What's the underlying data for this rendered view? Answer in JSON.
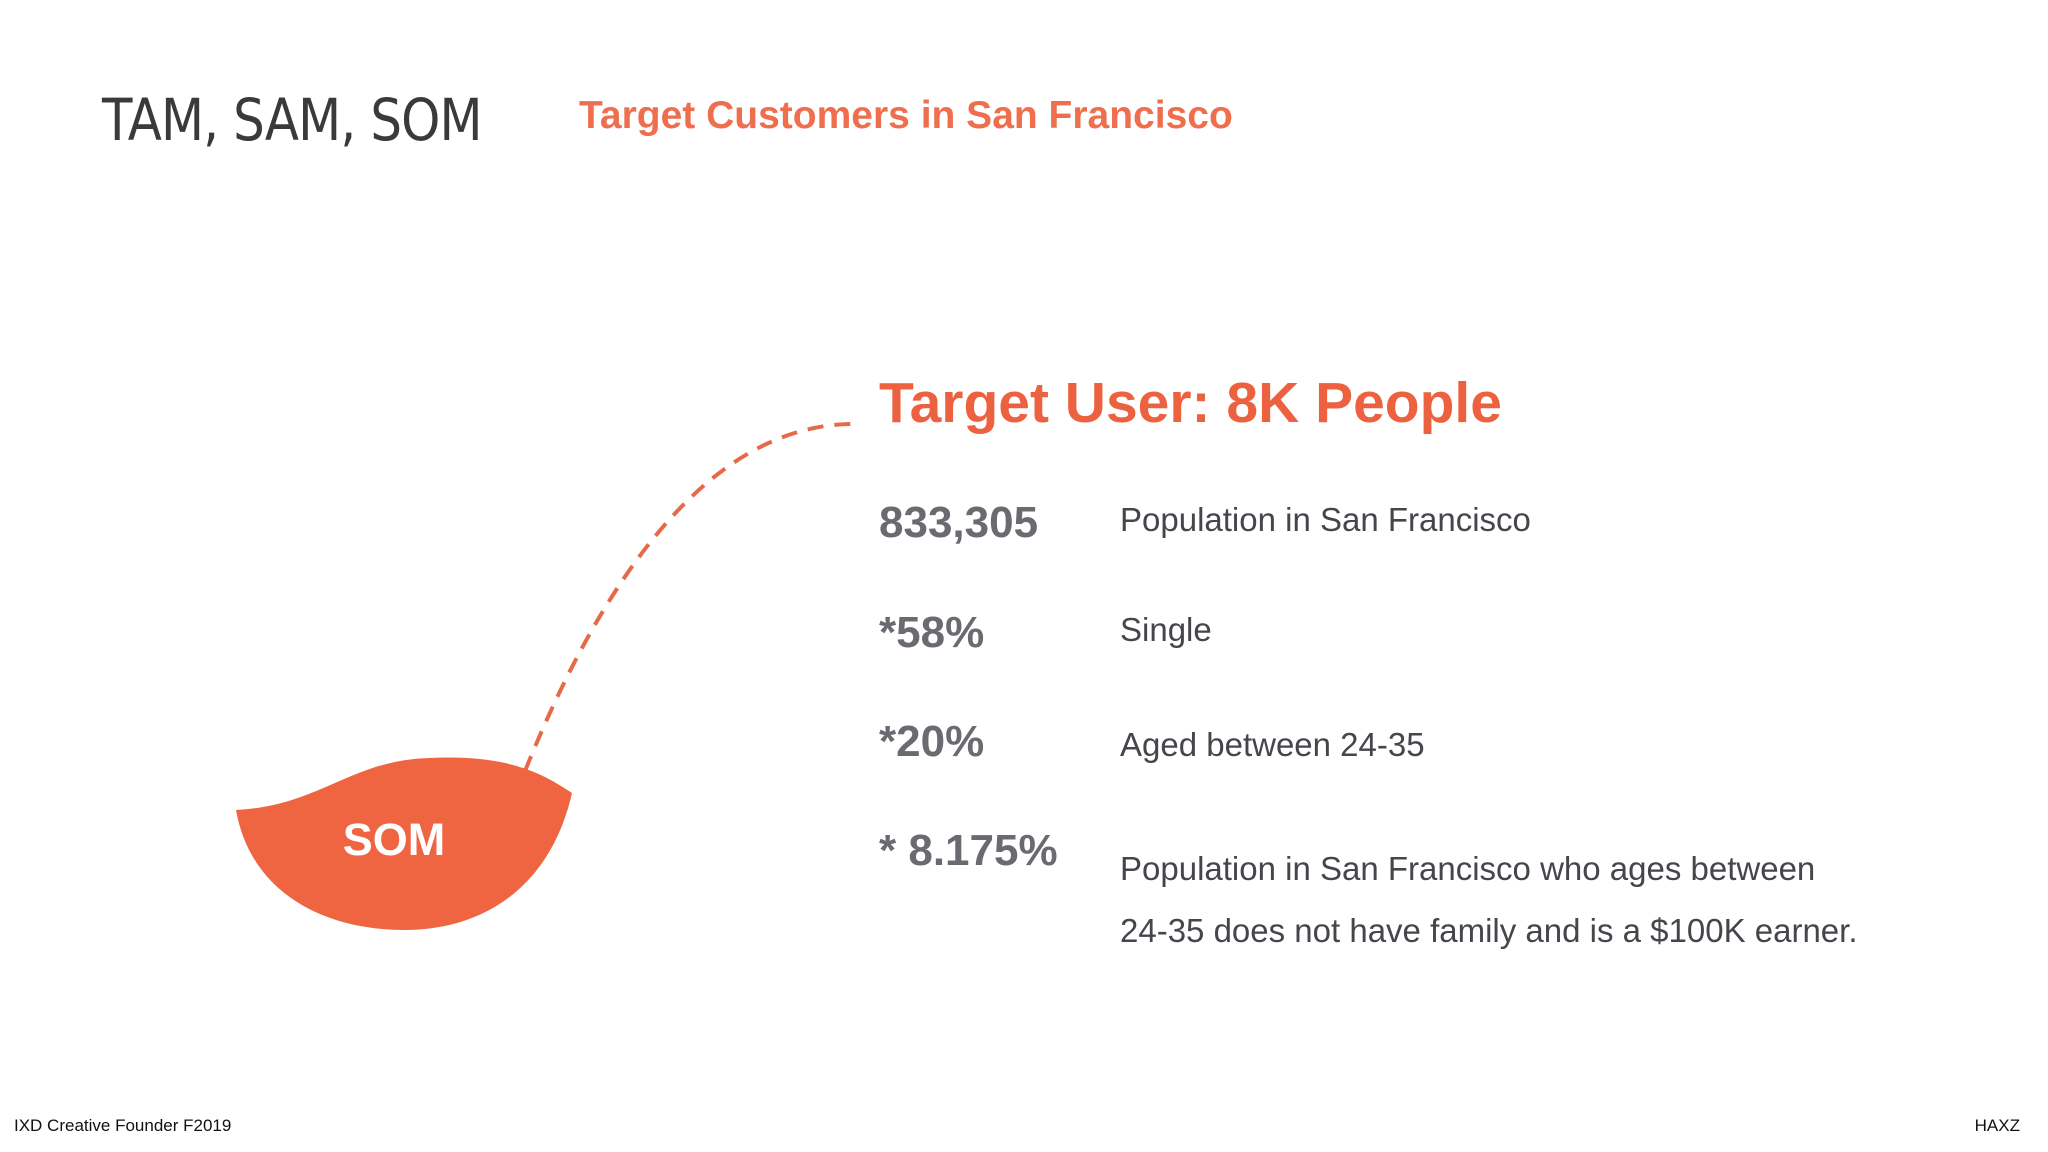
{
  "slide": {
    "title": "TAM, SAM, SOM",
    "subtitle": "Target Customers in San Francisco",
    "headline": "Target User: 8K People"
  },
  "diagram": {
    "segment_label": "SOM",
    "colors": {
      "accent": "#ef6542",
      "dashed_line": "#e56a48"
    }
  },
  "stats": [
    {
      "value": "833,305",
      "description": "Population in San Francisco"
    },
    {
      "value": "*58%",
      "description": "Single"
    },
    {
      "value": "*20%",
      "description": "Aged between 24-35"
    },
    {
      "value": "* 8.175%",
      "description_line1": "Population in San Francisco who ages between",
      "description_line2": "24-35 does not have family and is a $100K earner."
    }
  ],
  "footer": {
    "left": "IXD Creative Founder F2019",
    "right": "HAXZ"
  }
}
